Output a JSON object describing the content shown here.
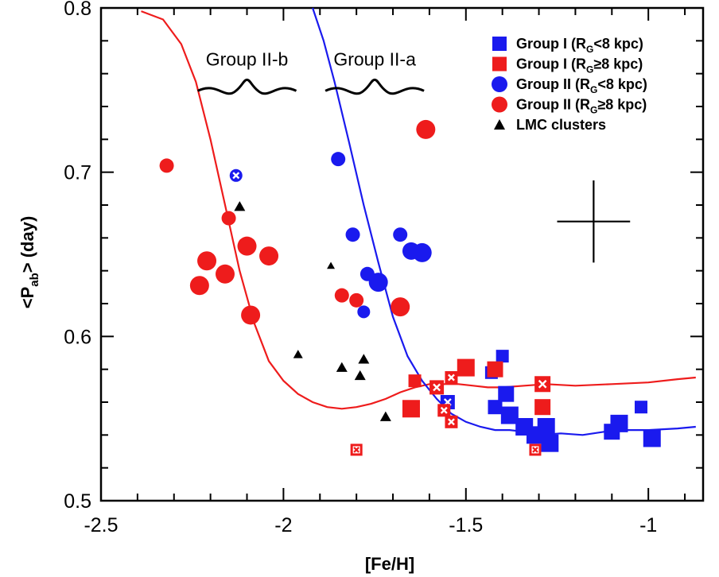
{
  "chart_data": {
    "type": "scatter",
    "xlabel": "[Fe/H]",
    "ylabel_main": "<P",
    "ylabel_sub": "ab",
    "ylabel_tail": "> (day)",
    "xlim": [
      -2.5,
      -0.85
    ],
    "ylim": [
      0.5,
      0.8
    ],
    "xticks": [
      -2.5,
      -2,
      -1.5,
      -1
    ],
    "xtick_labels": [
      "-2.5",
      "-2",
      "-1.5",
      "-1"
    ],
    "yticks": [
      0.5,
      0.6,
      0.7,
      0.8
    ],
    "ytick_labels": [
      "0.5",
      "0.6",
      "0.7",
      "0.8"
    ],
    "grid": false,
    "legend_position": "top-right",
    "annotations": [
      {
        "text": "Group II-b",
        "x": -2.1,
        "y": 0.765
      },
      {
        "text": "Group II-a",
        "x": -1.75,
        "y": 0.765
      }
    ],
    "colors": {
      "red": "#ee1c1c",
      "blue": "#1a1aee",
      "black": "#000000"
    },
    "legend": [
      {
        "text": "Group I (R",
        "sub": "G",
        "tail": "<8 kpc)",
        "marker": "square",
        "color": "#1a1aee"
      },
      {
        "text": "Group I (R",
        "sub": "G",
        "tail": "≥8 kpc)",
        "marker": "square",
        "color": "#ee1c1c"
      },
      {
        "text": "Group II (R",
        "sub": "G",
        "tail": "<8 kpc)",
        "marker": "circle",
        "color": "#1a1aee"
      },
      {
        "text": "Group II (R",
        "sub": "G",
        "tail": "≥8 kpc)",
        "marker": "circle",
        "color": "#ee1c1c"
      },
      {
        "text": "LMC clusters",
        "sub": "",
        "tail": "",
        "marker": "triangle",
        "color": "#000000"
      }
    ],
    "error_bar": {
      "x": -1.15,
      "y": 0.67,
      "dx": 0.1,
      "dy": 0.025
    },
    "series": [
      {
        "name": "Group I (RG<8 kpc)",
        "marker": "square",
        "color": "#1a1aee",
        "points": [
          {
            "x": -1.55,
            "y": 0.56,
            "s": 9,
            "cross": true
          },
          {
            "x": -1.43,
            "y": 0.578,
            "s": 8
          },
          {
            "x": -1.4,
            "y": 0.588,
            "s": 8
          },
          {
            "x": -1.39,
            "y": 0.565,
            "s": 10
          },
          {
            "x": -1.42,
            "y": 0.557,
            "s": 9
          },
          {
            "x": -1.38,
            "y": 0.552,
            "s": 11
          },
          {
            "x": -1.34,
            "y": 0.545,
            "s": 11
          },
          {
            "x": -1.31,
            "y": 0.54,
            "s": 11
          },
          {
            "x": -1.28,
            "y": 0.545,
            "s": 11
          },
          {
            "x": -1.27,
            "y": 0.535,
            "s": 11
          },
          {
            "x": -1.1,
            "y": 0.542,
            "s": 10
          },
          {
            "x": -1.08,
            "y": 0.547,
            "s": 11
          },
          {
            "x": -1.02,
            "y": 0.557,
            "s": 8
          },
          {
            "x": -0.99,
            "y": 0.538,
            "s": 11
          }
        ]
      },
      {
        "name": "Group I (RG≥8 kpc)",
        "marker": "square",
        "color": "#ee1c1c",
        "points": [
          {
            "x": -1.8,
            "y": 0.531,
            "s": 6,
            "cross": true
          },
          {
            "x": -1.64,
            "y": 0.573,
            "s": 8
          },
          {
            "x": -1.65,
            "y": 0.556,
            "s": 11
          },
          {
            "x": -1.58,
            "y": 0.569,
            "s": 9,
            "cross": true
          },
          {
            "x": -1.56,
            "y": 0.555,
            "s": 8,
            "cross": true
          },
          {
            "x": -1.54,
            "y": 0.548,
            "s": 8,
            "cross": true
          },
          {
            "x": -1.54,
            "y": 0.575,
            "s": 8,
            "cross": true
          },
          {
            "x": -1.5,
            "y": 0.581,
            "s": 11
          },
          {
            "x": -1.42,
            "y": 0.58,
            "s": 10
          },
          {
            "x": -1.29,
            "y": 0.571,
            "s": 10,
            "cross": true
          },
          {
            "x": -1.29,
            "y": 0.557,
            "s": 10
          },
          {
            "x": -1.31,
            "y": 0.531,
            "s": 6,
            "cross": true
          }
        ]
      },
      {
        "name": "Group II (RG<8 kpc)",
        "marker": "circle",
        "color": "#1a1aee",
        "points": [
          {
            "x": -2.13,
            "y": 0.698,
            "r": 8,
            "cross": true
          },
          {
            "x": -1.85,
            "y": 0.708,
            "r": 9
          },
          {
            "x": -1.81,
            "y": 0.662,
            "r": 9
          },
          {
            "x": -1.78,
            "y": 0.615,
            "r": 8
          },
          {
            "x": -1.77,
            "y": 0.638,
            "r": 9
          },
          {
            "x": -1.74,
            "y": 0.633,
            "r": 12
          },
          {
            "x": -1.68,
            "y": 0.662,
            "r": 9
          },
          {
            "x": -1.65,
            "y": 0.652,
            "r": 11
          },
          {
            "x": -1.62,
            "y": 0.651,
            "r": 12
          }
        ]
      },
      {
        "name": "Group II (RG≥8 kpc)",
        "marker": "circle",
        "color": "#ee1c1c",
        "points": [
          {
            "x": -2.32,
            "y": 0.704,
            "r": 9
          },
          {
            "x": -2.23,
            "y": 0.631,
            "r": 12
          },
          {
            "x": -2.21,
            "y": 0.646,
            "r": 12
          },
          {
            "x": -2.16,
            "y": 0.638,
            "r": 12
          },
          {
            "x": -2.15,
            "y": 0.672,
            "r": 9
          },
          {
            "x": -2.1,
            "y": 0.655,
            "r": 12
          },
          {
            "x": -2.09,
            "y": 0.613,
            "r": 12
          },
          {
            "x": -2.04,
            "y": 0.649,
            "r": 12
          },
          {
            "x": -1.84,
            "y": 0.625,
            "r": 9
          },
          {
            "x": -1.8,
            "y": 0.622,
            "r": 9
          },
          {
            "x": -1.68,
            "y": 0.618,
            "r": 12
          },
          {
            "x": -1.61,
            "y": 0.726,
            "r": 12
          }
        ]
      },
      {
        "name": "LMC clusters",
        "marker": "triangle",
        "color": "#000000",
        "points": [
          {
            "x": -2.12,
            "y": 0.679,
            "s": 7
          },
          {
            "x": -1.96,
            "y": 0.589,
            "s": 6
          },
          {
            "x": -1.87,
            "y": 0.643,
            "s": 5
          },
          {
            "x": -1.84,
            "y": 0.581,
            "s": 7
          },
          {
            "x": -1.79,
            "y": 0.576,
            "s": 7
          },
          {
            "x": -1.78,
            "y": 0.586,
            "s": 7
          },
          {
            "x": -1.72,
            "y": 0.551,
            "s": 7
          }
        ]
      }
    ],
    "curves": [
      {
        "color": "#ee1c1c",
        "points": [
          [
            -2.39,
            0.798
          ],
          [
            -2.33,
            0.793
          ],
          [
            -2.28,
            0.778
          ],
          [
            -2.24,
            0.755
          ],
          [
            -2.2,
            0.72
          ],
          [
            -2.16,
            0.68
          ],
          [
            -2.12,
            0.64
          ],
          [
            -2.08,
            0.608
          ],
          [
            -2.04,
            0.585
          ],
          [
            -2.0,
            0.573
          ],
          [
            -1.96,
            0.565
          ],
          [
            -1.92,
            0.56
          ],
          [
            -1.88,
            0.557
          ],
          [
            -1.84,
            0.556
          ],
          [
            -1.8,
            0.557
          ],
          [
            -1.76,
            0.559
          ],
          [
            -1.72,
            0.562
          ],
          [
            -1.68,
            0.566
          ],
          [
            -1.64,
            0.569
          ],
          [
            -1.6,
            0.571
          ],
          [
            -1.56,
            0.571
          ],
          [
            -1.52,
            0.571
          ],
          [
            -1.48,
            0.57
          ],
          [
            -1.44,
            0.569
          ],
          [
            -1.4,
            0.569
          ],
          [
            -1.34,
            0.57
          ],
          [
            -1.28,
            0.571
          ],
          [
            -1.2,
            0.57
          ],
          [
            -1.1,
            0.571
          ],
          [
            -1.0,
            0.572
          ],
          [
            -0.92,
            0.574
          ],
          [
            -0.87,
            0.575
          ]
        ]
      },
      {
        "color": "#1a1aee",
        "points": [
          [
            -1.92,
            0.8
          ],
          [
            -1.89,
            0.78
          ],
          [
            -1.86,
            0.755
          ],
          [
            -1.82,
            0.718
          ],
          [
            -1.78,
            0.68
          ],
          [
            -1.74,
            0.645
          ],
          [
            -1.7,
            0.612
          ],
          [
            -1.66,
            0.588
          ],
          [
            -1.62,
            0.573
          ],
          [
            -1.58,
            0.562
          ],
          [
            -1.54,
            0.553
          ],
          [
            -1.5,
            0.548
          ],
          [
            -1.46,
            0.545
          ],
          [
            -1.42,
            0.543
          ],
          [
            -1.38,
            0.543
          ],
          [
            -1.34,
            0.542
          ],
          [
            -1.3,
            0.54
          ],
          [
            -1.24,
            0.541
          ],
          [
            -1.18,
            0.54
          ],
          [
            -1.12,
            0.542
          ],
          [
            -1.06,
            0.543
          ],
          [
            -1.0,
            0.543
          ],
          [
            -0.92,
            0.544
          ],
          [
            -0.87,
            0.545
          ]
        ]
      }
    ]
  }
}
